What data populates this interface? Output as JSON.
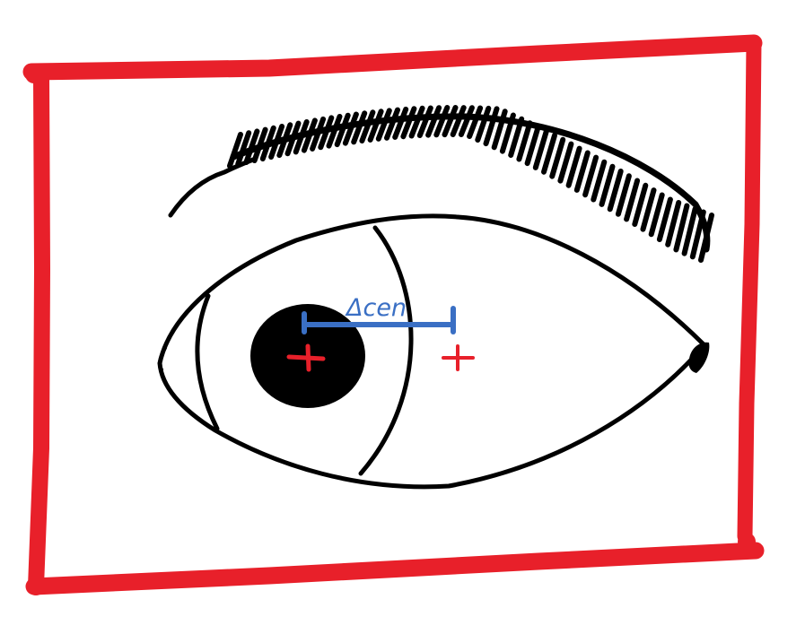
{
  "diagram": {
    "measurement_label": "Δcen",
    "colors": {
      "frame": "#e8202a",
      "ink": "#000000",
      "marker": "#e8202a",
      "measurement": "#3a6fc4",
      "background": "#ffffff"
    },
    "icons": {
      "pupil_center_marker": "plus-icon",
      "eye_center_marker": "plus-icon"
    }
  }
}
